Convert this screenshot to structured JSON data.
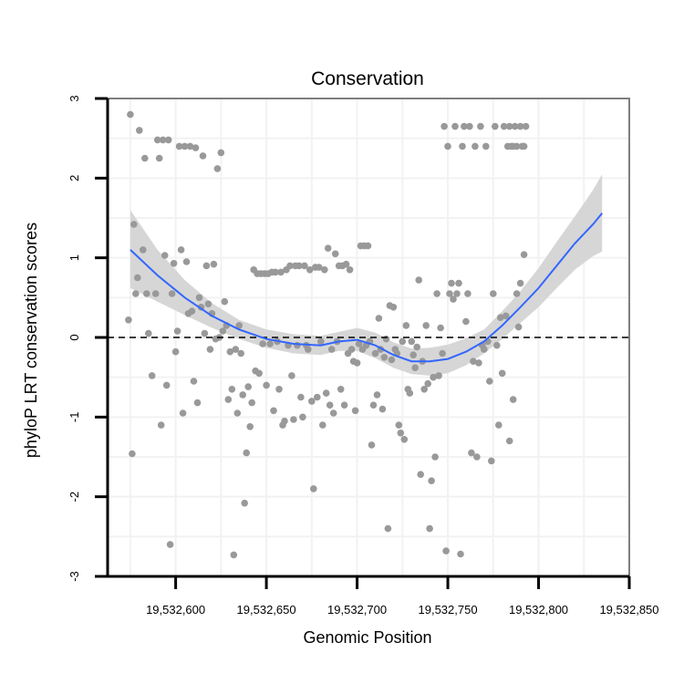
{
  "chart_data": {
    "type": "scatter",
    "title": "Conservation",
    "xlabel": "Genomic Position",
    "ylabel": "phyloP LRT conservation scores",
    "xlim": [
      19532562.5,
      19532850
    ],
    "ylim": [
      -3,
      3
    ],
    "x_ticks": [
      19532600,
      19532650,
      19532700,
      19532750,
      19532800,
      19532850
    ],
    "x_tick_labels": [
      "19,532,600",
      "19,532,650",
      "19,532,700",
      "19,532,750",
      "19,532,800",
      "19,532,850"
    ],
    "y_ticks": [
      -3,
      -2,
      -1,
      0,
      1,
      2,
      3
    ],
    "y_tick_labels": [
      "-3",
      "-2",
      "-1",
      "0",
      "1",
      "2",
      "3"
    ],
    "reference_line_y": 0,
    "colors": {
      "points": "#999999",
      "smooth": "#3366ff",
      "ribbon": "#d6d6d6",
      "grid": "#f2f2f2",
      "frame": "#7f7f7f",
      "refline": "#000000"
    },
    "points": [
      [
        19532575,
        2.8
      ],
      [
        19532576,
        -1.46
      ],
      [
        19532577,
        1.42
      ],
      [
        19532578,
        0.55
      ],
      [
        19532579,
        0.75
      ],
      [
        19532574,
        0.22
      ],
      [
        19532580,
        2.6
      ],
      [
        19532582,
        1.1
      ],
      [
        19532583,
        2.25
      ],
      [
        19532584,
        0.55
      ],
      [
        19532585,
        0.05
      ],
      [
        19532587,
        -0.48
      ],
      [
        19532589,
        0.55
      ],
      [
        19532590,
        2.48
      ],
      [
        19532591,
        2.25
      ],
      [
        19532592,
        -1.1
      ],
      [
        19532593,
        2.48
      ],
      [
        19532594,
        1.03
      ],
      [
        19532595,
        -0.6
      ],
      [
        19532596,
        2.48
      ],
      [
        19532597,
        -2.6
      ],
      [
        19532598,
        0.55
      ],
      [
        19532599,
        0.93
      ],
      [
        19532600,
        -0.18
      ],
      [
        19532601,
        0.08
      ],
      [
        19532602,
        2.4
      ],
      [
        19532603,
        1.1
      ],
      [
        19532604,
        -0.95
      ],
      [
        19532605,
        2.4
      ],
      [
        19532606,
        0.95
      ],
      [
        19532607,
        0.3
      ],
      [
        19532608,
        2.4
      ],
      [
        19532609,
        0.33
      ],
      [
        19532610,
        -0.55
      ],
      [
        19532611,
        2.38
      ],
      [
        19532612,
        -0.82
      ],
      [
        19532613,
        0.5
      ],
      [
        19532614,
        0.38
      ],
      [
        19532615,
        2.28
      ],
      [
        19532616,
        0.05
      ],
      [
        19532617,
        0.9
      ],
      [
        19532618,
        0.42
      ],
      [
        19532619,
        -0.15
      ],
      [
        19532620,
        0.3
      ],
      [
        19532621,
        0.92
      ],
      [
        19532622,
        -0.02
      ],
      [
        19532623,
        2.12
      ],
      [
        19532624,
        0.0
      ],
      [
        19532625,
        2.32
      ],
      [
        19532626,
        0.08
      ],
      [
        19532627,
        0.45
      ],
      [
        19532628,
        0.15
      ],
      [
        19532629,
        -0.78
      ],
      [
        19532630,
        -0.18
      ],
      [
        19532631,
        -0.65
      ],
      [
        19532632,
        -2.73
      ],
      [
        19532633,
        -0.15
      ],
      [
        19532634,
        -0.95
      ],
      [
        19532635,
        0.15
      ],
      [
        19532636,
        -0.2
      ],
      [
        19532637,
        -0.72
      ],
      [
        19532638,
        -2.08
      ],
      [
        19532639,
        -1.45
      ],
      [
        19532640,
        -0.62
      ],
      [
        19532641,
        -1.12
      ],
      [
        19532642,
        -0.82
      ],
      [
        19532643,
        0.85
      ],
      [
        19532644,
        -0.42
      ],
      [
        19532645,
        0.8
      ],
      [
        19532646,
        -0.45
      ],
      [
        19532647,
        0.8
      ],
      [
        19532648,
        -0.08
      ],
      [
        19532649,
        0.8
      ],
      [
        19532650,
        -0.6
      ],
      [
        19532651,
        0.8
      ],
      [
        19532652,
        -0.08
      ],
      [
        19532653,
        0.82
      ],
      [
        19532654,
        -0.92
      ],
      [
        19532655,
        0.82
      ],
      [
        19532656,
        -0.05
      ],
      [
        19532657,
        -0.65
      ],
      [
        19532658,
        0.82
      ],
      [
        19532659,
        -1.1
      ],
      [
        19532660,
        -1.05
      ],
      [
        19532661,
        0.85
      ],
      [
        19532662,
        -0.1
      ],
      [
        19532663,
        0.9
      ],
      [
        19532664,
        -0.48
      ],
      [
        19532665,
        -1.03
      ],
      [
        19532666,
        0.9
      ],
      [
        19532667,
        -0.1
      ],
      [
        19532668,
        0.9
      ],
      [
        19532669,
        -0.75
      ],
      [
        19532670,
        -1.0
      ],
      [
        19532671,
        0.9
      ],
      [
        19532672,
        -0.1
      ],
      [
        19532673,
        -0.15
      ],
      [
        19532674,
        0.85
      ],
      [
        19532675,
        -0.8
      ],
      [
        19532676,
        -1.9
      ],
      [
        19532677,
        0.88
      ],
      [
        19532678,
        -0.75
      ],
      [
        19532679,
        0.88
      ],
      [
        19532680,
        -0.05
      ],
      [
        19532681,
        -1.1
      ],
      [
        19532682,
        0.85
      ],
      [
        19532683,
        -0.7
      ],
      [
        19532684,
        1.12
      ],
      [
        19532685,
        -0.85
      ],
      [
        19532686,
        -0.15
      ],
      [
        19532687,
        -0.95
      ],
      [
        19532688,
        1.05
      ],
      [
        19532689,
        -0.05
      ],
      [
        19532690,
        0.9
      ],
      [
        19532691,
        -0.65
      ],
      [
        19532692,
        0.9
      ],
      [
        19532693,
        -0.85
      ],
      [
        19532694,
        0.92
      ],
      [
        19532695,
        -0.2
      ],
      [
        19532696,
        0.85
      ],
      [
        19532697,
        -0.15
      ],
      [
        19532698,
        -0.3
      ],
      [
        19532699,
        -0.92
      ],
      [
        19532700,
        -0.32
      ],
      [
        19532701,
        -0.08
      ],
      [
        19532702,
        1.15
      ],
      [
        19532703,
        -0.15
      ],
      [
        19532704,
        1.15
      ],
      [
        19532705,
        -0.1
      ],
      [
        19532706,
        1.15
      ],
      [
        19532707,
        -0.05
      ],
      [
        19532708,
        -1.35
      ],
      [
        19532709,
        -0.85
      ],
      [
        19532710,
        -0.2
      ],
      [
        19532711,
        -0.72
      ],
      [
        19532712,
        0.24
      ],
      [
        19532713,
        -0.15
      ],
      [
        19532714,
        -0.9
      ],
      [
        19532715,
        -0.25
      ],
      [
        19532716,
        -0.02
      ],
      [
        19532717,
        -2.4
      ],
      [
        19532718,
        0.4
      ],
      [
        19532719,
        -0.28
      ],
      [
        19532720,
        0.38
      ],
      [
        19532721,
        -0.15
      ],
      [
        19532722,
        -0.2
      ],
      [
        19532723,
        -1.1
      ],
      [
        19532724,
        -1.2
      ],
      [
        19532725,
        -0.05
      ],
      [
        19532726,
        -1.28
      ],
      [
        19532727,
        0.15
      ],
      [
        19532728,
        -0.65
      ],
      [
        19532729,
        -0.7
      ],
      [
        19532730,
        -0.05
      ],
      [
        19532731,
        -0.22
      ],
      [
        19532732,
        -0.38
      ],
      [
        19532733,
        -0.12
      ],
      [
        19532734,
        0.72
      ],
      [
        19532735,
        -1.72
      ],
      [
        19532736,
        -0.3
      ],
      [
        19532737,
        -0.65
      ],
      [
        19532738,
        0.15
      ],
      [
        19532739,
        -0.58
      ],
      [
        19532740,
        -2.4
      ],
      [
        19532741,
        -1.8
      ],
      [
        19532742,
        -0.5
      ],
      [
        19532743,
        -1.5
      ],
      [
        19532744,
        0.55
      ],
      [
        19532745,
        -0.48
      ],
      [
        19532746,
        0.12
      ],
      [
        19532747,
        -0.2
      ],
      [
        19532748,
        2.65
      ],
      [
        19532749,
        -2.68
      ],
      [
        19532750,
        2.4
      ],
      [
        19532751,
        0.55
      ],
      [
        19532752,
        0.68
      ],
      [
        19532753,
        0.48
      ],
      [
        19532754,
        2.65
      ],
      [
        19532755,
        0.55
      ],
      [
        19532756,
        0.68
      ],
      [
        19532757,
        -2.72
      ],
      [
        19532758,
        2.4
      ],
      [
        19532759,
        2.65
      ],
      [
        19532760,
        0.2
      ],
      [
        19532761,
        0.55
      ],
      [
        19532762,
        2.65
      ],
      [
        19532763,
        -1.45
      ],
      [
        19532764,
        -0.3
      ],
      [
        19532765,
        2.4
      ],
      [
        19532766,
        -1.5
      ],
      [
        19532767,
        -0.32
      ],
      [
        19532768,
        2.65
      ],
      [
        19532769,
        -0.1
      ],
      [
        19532770,
        -0.15
      ],
      [
        19532771,
        2.4
      ],
      [
        19532772,
        -0.05
      ],
      [
        19532773,
        -0.55
      ],
      [
        19532774,
        -1.55
      ],
      [
        19532775,
        0.55
      ],
      [
        19532776,
        2.65
      ],
      [
        19532777,
        -0.1
      ],
      [
        19532778,
        -1.1
      ],
      [
        19532779,
        0.25
      ],
      [
        19532780,
        -0.45
      ],
      [
        19532781,
        2.65
      ],
      [
        19532782,
        0.27
      ],
      [
        19532783,
        2.4
      ],
      [
        19532784,
        -1.3
      ],
      [
        19532785,
        2.4
      ],
      [
        19532786,
        -0.78
      ],
      [
        19532787,
        2.65
      ],
      [
        19532788,
        0.55
      ],
      [
        19532789,
        0.13
      ],
      [
        19532790,
        0.68
      ],
      [
        19532791,
        2.4
      ],
      [
        19532792,
        1.04
      ],
      [
        19532793,
        2.65
      ],
      [
        19532786,
        2.4
      ],
      [
        19532784,
        2.65
      ],
      [
        19532788,
        2.4
      ],
      [
        19532790,
        2.65
      ],
      [
        19532792,
        2.4
      ]
    ],
    "smooth": {
      "x": [
        19532575,
        19532590,
        19532605,
        19532620,
        19532635,
        19532650,
        19532665,
        19532680,
        19532690,
        19532700,
        19532710,
        19532720,
        19532730,
        19532740,
        19532750,
        19532760,
        19532770,
        19532780,
        19532790,
        19532800,
        19532810,
        19532820,
        19532830,
        19532835
      ],
      "y": [
        1.1,
        0.78,
        0.5,
        0.27,
        0.1,
        -0.02,
        -0.08,
        -0.1,
        -0.05,
        -0.03,
        -0.1,
        -0.22,
        -0.3,
        -0.3,
        -0.27,
        -0.18,
        -0.05,
        0.15,
        0.38,
        0.62,
        0.9,
        1.18,
        1.42,
        1.56
      ],
      "lower": [
        0.62,
        0.45,
        0.28,
        0.12,
        -0.02,
        -0.13,
        -0.2,
        -0.22,
        -0.17,
        -0.17,
        -0.26,
        -0.38,
        -0.46,
        -0.48,
        -0.45,
        -0.35,
        -0.2,
        -0.02,
        0.18,
        0.38,
        0.62,
        0.85,
        1.02,
        1.08
      ],
      "upper": [
        1.6,
        1.1,
        0.72,
        0.43,
        0.22,
        0.1,
        0.04,
        0.02,
        0.07,
        0.12,
        0.06,
        -0.06,
        -0.14,
        -0.13,
        -0.09,
        -0.01,
        0.1,
        0.33,
        0.58,
        0.87,
        1.2,
        1.52,
        1.85,
        2.05
      ]
    }
  }
}
